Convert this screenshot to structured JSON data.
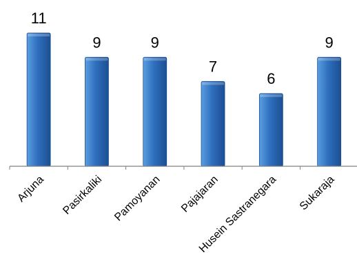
{
  "chart_data": {
    "type": "bar",
    "categories": [
      "Arjuna",
      "Pasirkaliki",
      "Pamoyanan",
      "Pajajaran",
      "Husein Sastranegara",
      "Sukaraja"
    ],
    "values": [
      11,
      9,
      9,
      7,
      6,
      9
    ],
    "data_labels": [
      "11",
      "9",
      "9",
      "7",
      "6",
      "9"
    ],
    "title": "",
    "xlabel": "",
    "ylabel": "",
    "ylim": [
      0,
      11
    ],
    "grid": false,
    "legend": "none",
    "colors": {
      "bar_light": "#5b9ee0",
      "bar_mid": "#2f6fbe",
      "bar_dark": "#1c4f92",
      "axis": "#808080"
    }
  }
}
